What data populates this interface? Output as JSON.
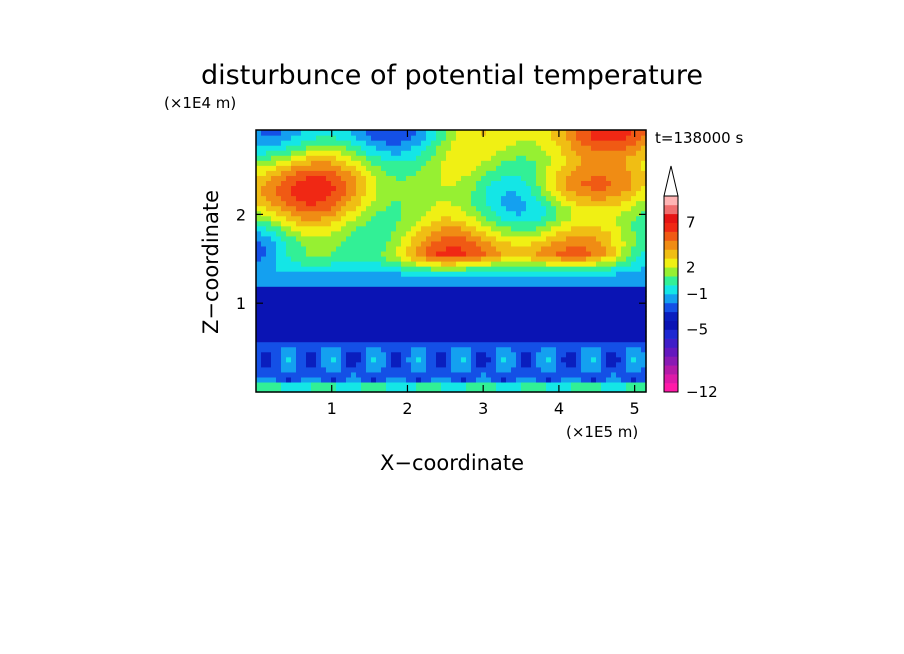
{
  "chart_data": {
    "type": "heatmap",
    "title": "disturbunce of potential temperature",
    "xlabel": "X−coordinate",
    "ylabel": "Z−coordinate",
    "x_unit": "(×1E5 m)",
    "y_unit": "(×1E4 m)",
    "time_label": "t=138000 s",
    "xlim": [
      0,
      5.15
    ],
    "ylim": [
      0,
      2.95
    ],
    "x_ticks": [
      1,
      2,
      3,
      4,
      5
    ],
    "x_tick_labels": [
      "1",
      "2",
      "3",
      "4",
      "5"
    ],
    "y_ticks": [
      1,
      2
    ],
    "y_tick_labels": [
      "1",
      "2"
    ],
    "colorbar": {
      "levels": [
        -12,
        -11,
        -10,
        -9,
        -8,
        -7,
        -6,
        -5,
        -4,
        -3,
        -2,
        -1,
        0,
        1,
        2,
        3,
        4,
        5,
        6,
        7,
        8,
        9
      ],
      "colors": [
        "#ff1aa8",
        "#dd1aa8",
        "#b41aa8",
        "#8a1ab4",
        "#6418be",
        "#3f1ec8",
        "#1e28d2",
        "#0a14b4",
        "#0a1ebe",
        "#1450e6",
        "#14a0f0",
        "#14e6e6",
        "#32f096",
        "#96f032",
        "#f0f014",
        "#f0be14",
        "#f08c14",
        "#f05a14",
        "#f02814",
        "#e61414",
        "#f06e6e",
        "#ffb4b4"
      ],
      "tick_values": [
        -12,
        -5,
        -1,
        2,
        7
      ],
      "tick_labels": [
        "−12",
        "−5",
        "−1",
        "2",
        "7"
      ],
      "extend": "max"
    },
    "field_description_levels": {
      "upper_layer_z_gt_1_3": "wave pattern, values mostly 0 to 6, pockets down to -5",
      "middle_layer_z_0_5_to_1_2": "uniform about -4 to -5",
      "lower_layer_z_0_2_to_0_5": "cellular pattern, -1 to -3",
      "surface_z_lt_0_1": "near 0"
    }
  }
}
